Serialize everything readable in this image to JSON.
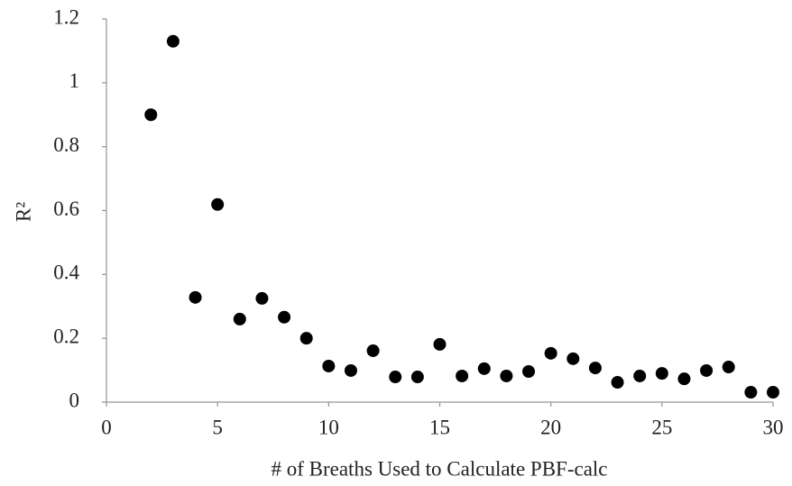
{
  "chart_data": {
    "type": "scatter",
    "x_label": "# of Breaths Used to Calculate PBF-calc",
    "y_label": "R²",
    "x": [
      2,
      3,
      4,
      5,
      6,
      7,
      8,
      9,
      10,
      11,
      12,
      13,
      14,
      15,
      16,
      17,
      18,
      19,
      20,
      21,
      22,
      23,
      24,
      25,
      26,
      27,
      28,
      29,
      30
    ],
    "values": [
      0.9,
      1.13,
      0.328,
      0.619,
      0.26,
      0.325,
      0.266,
      0.2,
      0.113,
      0.099,
      0.161,
      0.079,
      0.079,
      0.181,
      0.082,
      0.105,
      0.082,
      0.096,
      0.153,
      0.136,
      0.107,
      0.062,
      0.082,
      0.09,
      0.073,
      0.099,
      0.11,
      0.031,
      0.031
    ],
    "color": "#000000",
    "xlim": [
      0,
      30
    ],
    "xticks": [
      0,
      5,
      10,
      15,
      20,
      25,
      30
    ],
    "ylim": [
      0,
      1.2
    ],
    "yticks": [
      0,
      0.2,
      0.4,
      0.6,
      0.8,
      1,
      1.2
    ],
    "grid": false
  }
}
